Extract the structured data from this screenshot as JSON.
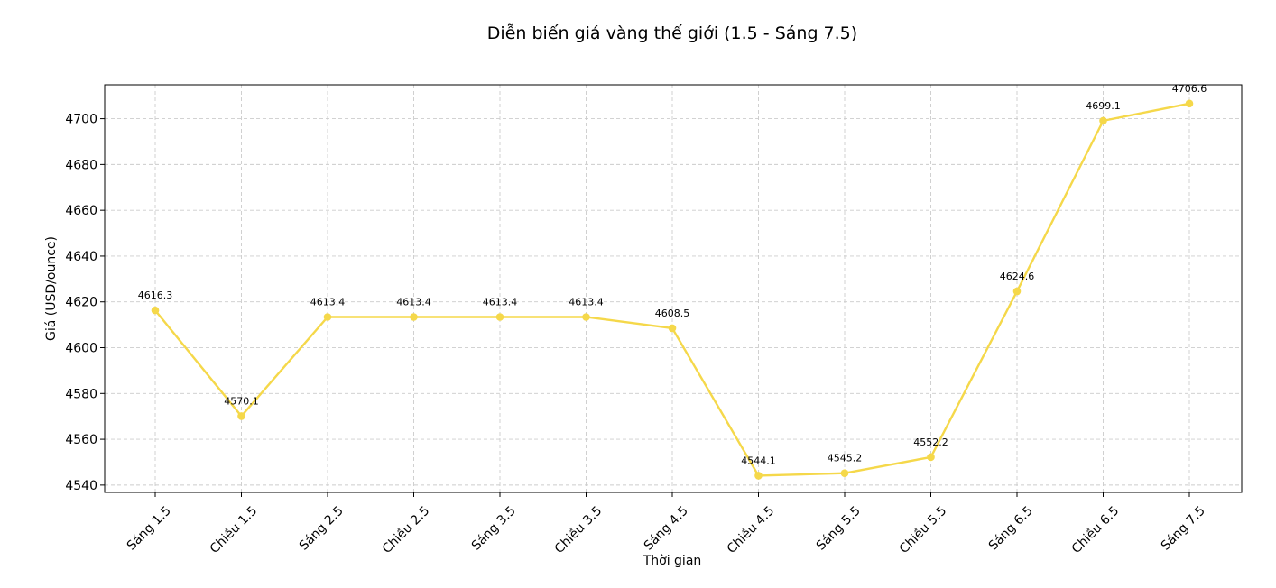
{
  "chart_data": {
    "type": "line",
    "title": "Diễn biến giá vàng thế giới (1.5 - Sáng 7.5)",
    "xlabel": "Thời gian",
    "ylabel": "Giá (USD/ounce)",
    "categories": [
      "Sáng 1.5",
      "Chiều 1.5",
      "Sáng 2.5",
      "Chiều 2.5",
      "Sáng 3.5",
      "Chiều 3.5",
      "Sáng 4.5",
      "Chiều 4.5",
      "Sáng 5.5",
      "Chiều 5.5",
      "Sáng 6.5",
      "Chiều 6.5",
      "Sáng 7.5"
    ],
    "series": [
      {
        "values": [
          4616.3,
          4570.1,
          4613.4,
          4613.4,
          4613.4,
          4613.4,
          4608.5,
          4544.1,
          4545.2,
          4552.2,
          4624.6,
          4699.1,
          4706.6
        ],
        "color": "#f5d84a"
      }
    ],
    "data_labels": [
      "4616.3",
      "4570.1",
      "4613.4",
      "4613.4",
      "4613.4",
      "4613.4",
      "4608.5",
      "4544.1",
      "4545.2",
      "4552.2",
      "4624.6",
      "4699.1",
      "4706.6"
    ],
    "yticks": [
      4540,
      4560,
      4580,
      4600,
      4620,
      4640,
      4660,
      4680,
      4700
    ],
    "ylim": [
      4536.8,
      4714.8
    ],
    "grid": true,
    "marker": "circle"
  }
}
